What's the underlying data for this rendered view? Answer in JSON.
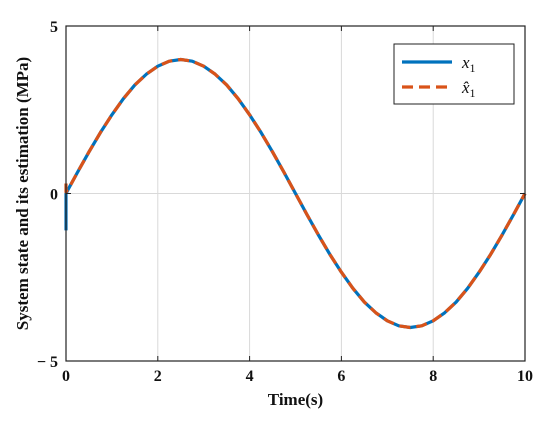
{
  "chart_data": {
    "type": "line",
    "title": "",
    "xlabel": "Time(s)",
    "ylabel": "System state and its estimation (MPa)",
    "xlim": [
      0,
      10
    ],
    "ylim": [
      -5,
      5
    ],
    "xticks": [
      "0",
      "2",
      "4",
      "6",
      "8",
      "10"
    ],
    "yticks": [
      "5",
      "0",
      "− 5"
    ],
    "grid": true,
    "legend_position": "top-right",
    "series": [
      {
        "name": "x1",
        "color": "#0072BD",
        "style": "solid",
        "x": [
          0,
          0.0001,
          0.05,
          0.25,
          0.5,
          0.75,
          1.0,
          1.25,
          1.5,
          1.75,
          2.0,
          2.25,
          2.5,
          2.75,
          3.0,
          3.25,
          3.5,
          3.75,
          4.0,
          4.25,
          4.5,
          4.75,
          5.0,
          5.25,
          5.5,
          5.75,
          6.0,
          6.25,
          6.5,
          6.75,
          7.0,
          7.25,
          7.5,
          7.75,
          8.0,
          8.25,
          8.5,
          8.75,
          9.0,
          9.25,
          9.5,
          9.75,
          10.0
        ],
        "y": [
          -1.1,
          0.0,
          0.13,
          0.63,
          1.24,
          1.82,
          2.35,
          2.83,
          3.24,
          3.56,
          3.8,
          3.95,
          4.0,
          3.95,
          3.8,
          3.56,
          3.24,
          2.83,
          2.35,
          1.82,
          1.24,
          0.63,
          0.0,
          -0.63,
          -1.24,
          -1.82,
          -2.35,
          -2.83,
          -3.24,
          -3.56,
          -3.8,
          -3.95,
          -4.0,
          -3.95,
          -3.8,
          -3.56,
          -3.24,
          -2.83,
          -2.35,
          -1.82,
          -1.24,
          -0.63,
          0.0
        ]
      },
      {
        "name": "x̂1",
        "color": "#D95319",
        "style": "dashed",
        "x": [
          0,
          0.0001,
          0.05,
          0.25,
          0.5,
          0.75,
          1.0,
          1.25,
          1.5,
          1.75,
          2.0,
          2.25,
          2.5,
          2.75,
          3.0,
          3.25,
          3.5,
          3.75,
          4.0,
          4.25,
          4.5,
          4.75,
          5.0,
          5.25,
          5.5,
          5.75,
          6.0,
          6.25,
          6.5,
          6.75,
          7.0,
          7.25,
          7.5,
          7.75,
          8.0,
          8.25,
          8.5,
          8.75,
          9.0,
          9.25,
          9.5,
          9.75,
          10.0
        ],
        "y": [
          0.3,
          0.05,
          0.13,
          0.63,
          1.24,
          1.82,
          2.35,
          2.83,
          3.24,
          3.56,
          3.8,
          3.95,
          4.0,
          3.95,
          3.8,
          3.56,
          3.24,
          2.83,
          2.35,
          1.82,
          1.24,
          0.63,
          0.0,
          -0.63,
          -1.24,
          -1.82,
          -2.35,
          -2.83,
          -3.24,
          -3.56,
          -3.8,
          -3.95,
          -4.0,
          -3.95,
          -3.8,
          -3.56,
          -3.24,
          -2.83,
          -2.35,
          -1.82,
          -1.24,
          -0.63,
          0.0
        ]
      }
    ]
  }
}
